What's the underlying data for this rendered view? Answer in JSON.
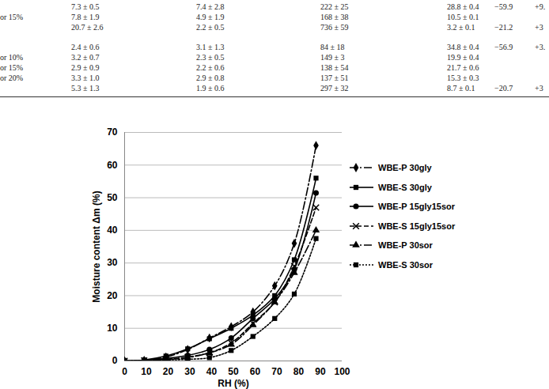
{
  "chart_data": {
    "type": "line",
    "xlabel": "RH (%)",
    "ylabel": "Moisture content Δm (%)",
    "x": [
      0,
      9,
      19,
      29,
      39,
      49,
      59,
      69,
      78,
      88
    ],
    "xlim": [
      0,
      100
    ],
    "xticks": [
      0,
      10,
      20,
      30,
      40,
      50,
      60,
      70,
      80,
      90,
      100
    ],
    "ylim": [
      0,
      70
    ],
    "yticks": [
      0,
      10,
      20,
      30,
      40,
      50,
      60,
      70
    ],
    "grid": true,
    "legend": "right",
    "series": [
      {
        "name": "WBE-P 30gly",
        "color": "#000000",
        "marker": "diamond",
        "line_style": "dashdot",
        "values": [
          0,
          0.2,
          1.2,
          3.5,
          7,
          10.5,
          15,
          23,
          36,
          66
        ]
      },
      {
        "name": "WBE-S 30gly",
        "color": "#000000",
        "marker": "square",
        "line_style": "solid",
        "values": [
          0,
          0.3,
          1.5,
          3.7,
          6.8,
          10,
          14,
          20,
          31,
          56
        ]
      },
      {
        "name": "WBE-P 15gly15sor",
        "color": "#000000",
        "marker": "circle",
        "line_style": "solid",
        "values": [
          0,
          0.2,
          0.8,
          1.7,
          3.5,
          7,
          13,
          19,
          28,
          51.5
        ]
      },
      {
        "name": "WBE-S 15gly15sor",
        "color": "#000000",
        "marker": "times",
        "line_style": "dashed",
        "values": [
          0,
          0.1,
          0.5,
          1.2,
          2.5,
          5.5,
          11.5,
          18,
          29,
          47
        ]
      },
      {
        "name": "WBE-P 30sor",
        "color": "#000000",
        "marker": "triangle",
        "line_style": "dashdot",
        "values": [
          0,
          0.1,
          0.4,
          1,
          2.5,
          5,
          11,
          18,
          27,
          40
        ]
      },
      {
        "name": "WBE-S 30sor",
        "color": "#000000",
        "marker": "square",
        "line_style": "dotted",
        "values": [
          0,
          0.1,
          0.3,
          0.5,
          1,
          3.2,
          7.5,
          13,
          20.5,
          37.5
        ]
      }
    ]
  },
  "table": {
    "rows": [
      [
        null,
        "7.3 ± 0.5",
        "7.4 ± 2.8",
        "222 ± 25",
        "28.8 ± 0.4",
        "−59.9",
        "+9."
      ],
      [
        "or 15%",
        "7.8 ± 1.9",
        "4.9 ± 1.9",
        "168 ± 38",
        "10.5 ± 0.1",
        null,
        null
      ],
      [
        null,
        "20.7 ± 2.6",
        "2.2 ± 0.5",
        "736 ± 59",
        "3.2 ± 0.1",
        "−21.2",
        "+3"
      ],
      [
        null,
        "2.4 ± 0.6",
        "3.1 ± 1.3",
        "84 ± 18",
        "34.8 ± 0.4",
        "−56.9",
        "+3."
      ],
      [
        "or 10%",
        "3.2 ± 0.7",
        "2.3 ± 0.5",
        "149 ± 3",
        "19.9 ± 0.4",
        null,
        null
      ],
      [
        "or 15%",
        "2.9 ± 0.9",
        "2.2 ± 0.6",
        "138 ± 54",
        "21.7 ± 0.6",
        null,
        null
      ],
      [
        "or 20%",
        "3.3 ± 1.0",
        "2.9 ± 0.8",
        "137 ± 51",
        "15.3 ± 0.3",
        null,
        null
      ],
      [
        null,
        "5.3 ± 1.3",
        "1.9 ± 0.6",
        "297 ± 32",
        "8.7 ± 0.1",
        "−20.7",
        "+3"
      ]
    ]
  }
}
